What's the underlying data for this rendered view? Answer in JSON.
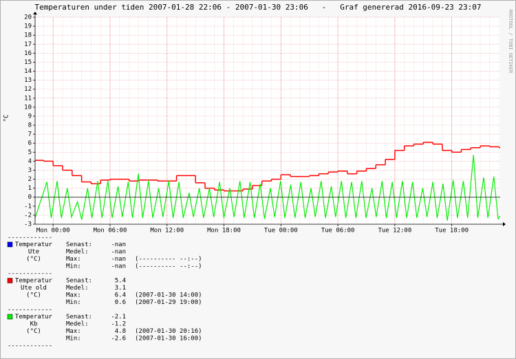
{
  "chart_data": {
    "type": "line",
    "title": "Temperaturen under tiden 2007-01-28 22:06 - 2007-01-30 23:06   -   Graf genererad 2016-09-23 23:07",
    "ylabel": "°C",
    "watermark": "RRDTOOL / TOBI OETIKER",
    "xlim": [
      -1.9,
      47.1
    ],
    "xticks": [
      {
        "value": 0,
        "label": "Mon 00:00"
      },
      {
        "value": 6,
        "label": "Mon 06:00"
      },
      {
        "value": 12,
        "label": "Mon 12:00"
      },
      {
        "value": 18,
        "label": "Mon 18:00"
      },
      {
        "value": 24,
        "label": "Tue 00:00"
      },
      {
        "value": 30,
        "label": "Tue 06:00"
      },
      {
        "value": 36,
        "label": "Tue 12:00"
      },
      {
        "value": 42,
        "label": "Tue 18:00"
      }
    ],
    "ylim": [
      -3,
      20
    ],
    "yticks": [
      -3,
      -2,
      -1,
      0,
      1,
      2,
      3,
      4,
      5,
      6,
      7,
      8,
      9,
      10,
      11,
      12,
      13,
      14,
      15,
      16,
      17,
      18,
      19,
      20
    ],
    "grid": true,
    "minor_grid_step": 1,
    "legend_separator": "------------",
    "series": [
      {
        "name": [
          "Temperatur",
          "Ute",
          "(°C)"
        ],
        "color": "#0000ff",
        "step": false,
        "x": [],
        "values": [],
        "stats": [
          {
            "label": "Senast:",
            "value": "-nan"
          },
          {
            "label": "Medel:",
            "value": "-nan"
          },
          {
            "label": "Max:",
            "value": "-nan",
            "time": "(---------- --:--)"
          },
          {
            "label": "Min:",
            "value": "-nan",
            "time": "(---------- --:--)"
          }
        ]
      },
      {
        "name": [
          "Temperatur",
          "Ute old",
          "(°C)"
        ],
        "color": "#ff0000",
        "step": true,
        "x": [
          -1.9,
          -1,
          0,
          1,
          2,
          3,
          4,
          5,
          6,
          7,
          8,
          9,
          10,
          11,
          12,
          13,
          14,
          15,
          16,
          17,
          18,
          19,
          20,
          21,
          22,
          23,
          24,
          25,
          26,
          27,
          28,
          29,
          30,
          31,
          32,
          33,
          34,
          35,
          36,
          37,
          38,
          39,
          40,
          41,
          42,
          43,
          44,
          45,
          46,
          47
        ],
        "values": [
          4.1,
          4.0,
          3.5,
          3.0,
          2.4,
          1.7,
          1.5,
          1.9,
          2.0,
          2.0,
          1.8,
          1.9,
          1.9,
          1.8,
          1.8,
          2.4,
          2.4,
          1.6,
          1.0,
          0.8,
          0.7,
          0.7,
          0.9,
          1.3,
          1.8,
          2.0,
          2.5,
          2.3,
          2.3,
          2.4,
          2.6,
          2.8,
          2.9,
          2.6,
          2.9,
          3.2,
          3.6,
          4.2,
          5.2,
          5.7,
          5.9,
          6.1,
          5.9,
          5.2,
          5.0,
          5.3,
          5.5,
          5.7,
          5.6,
          5.5
        ],
        "stats": [
          {
            "label": "Senast:",
            "value": 5.4
          },
          {
            "label": "Medel:",
            "value": 3.1
          },
          {
            "label": "Max:",
            "value": 6.4,
            "time": "(2007-01-30 14:00)"
          },
          {
            "label": "Min:",
            "value": 0.6,
            "time": "(2007-01-29 19:00)"
          }
        ]
      },
      {
        "name": [
          "Temperatur",
          "Kb",
          "(°C)"
        ],
        "color": "#00ee00",
        "step": false,
        "x": [
          -1.9,
          -0.65,
          -0.2,
          0.42,
          0.87,
          1.49,
          1.94,
          2.56,
          3.01,
          3.63,
          4.08,
          4.7,
          5.15,
          5.77,
          6.22,
          6.84,
          7.29,
          7.91,
          8.36,
          8.98,
          9.43,
          10.05,
          10.5,
          11.12,
          11.57,
          12.19,
          12.64,
          13.26,
          13.71,
          14.33,
          14.78,
          15.4,
          15.85,
          16.47,
          16.92,
          17.54,
          17.99,
          18.61,
          19.06,
          19.68,
          20.13,
          20.75,
          21.2,
          21.82,
          22.27,
          22.89,
          23.34,
          23.96,
          24.41,
          25.03,
          25.48,
          26.1,
          26.55,
          27.17,
          27.62,
          28.24,
          28.69,
          29.31,
          29.76,
          30.38,
          30.83,
          31.45,
          31.9,
          32.52,
          32.97,
          33.59,
          34.04,
          34.66,
          35.11,
          35.73,
          36.18,
          36.8,
          37.25,
          37.87,
          38.32,
          38.94,
          39.39,
          40.01,
          40.46,
          41.08,
          41.53,
          42.15,
          42.6,
          43.22,
          43.67,
          44.29,
          44.74,
          45.36,
          45.81,
          46.43,
          46.88,
          47.1
        ],
        "values": [
          -2.3,
          1.7,
          -2.3,
          1.8,
          -2.3,
          1.0,
          -2.2,
          -0.5,
          -2.5,
          1.0,
          -2.3,
          1.8,
          -2.3,
          1.8,
          -2.3,
          1.2,
          -2.2,
          1.7,
          -2.3,
          2.6,
          -2.3,
          1.8,
          -2.3,
          1.0,
          -2.2,
          1.8,
          -2.3,
          1.7,
          -2.3,
          0.5,
          -2.2,
          1.0,
          -2.3,
          1.0,
          -2.2,
          1.7,
          -2.3,
          1.0,
          -2.2,
          1.8,
          -2.3,
          1.7,
          -2.3,
          1.5,
          -2.4,
          1.0,
          -2.2,
          1.8,
          -2.3,
          1.4,
          -2.3,
          1.7,
          -2.3,
          1.0,
          -2.2,
          1.8,
          -2.3,
          1.2,
          -2.2,
          1.8,
          -2.3,
          1.7,
          -2.3,
          1.8,
          -2.3,
          1.0,
          -2.2,
          1.8,
          -2.3,
          1.7,
          -2.3,
          1.8,
          -2.3,
          1.7,
          -2.3,
          1.0,
          -2.2,
          1.7,
          -2.3,
          1.5,
          -2.6,
          1.9,
          -2.3,
          1.8,
          -2.3,
          4.7,
          -2.3,
          2.2,
          -2.3,
          2.3,
          -2.4,
          -2.1
        ],
        "stats": [
          {
            "label": "Senast:",
            "value": -2.1
          },
          {
            "label": "Medel:",
            "value": -1.2
          },
          {
            "label": "Max:",
            "value": 4.8,
            "time": "(2007-01-30 20:16)"
          },
          {
            "label": "Min:",
            "value": -2.6,
            "time": "(2007-01-30 16:00)"
          }
        ]
      }
    ]
  }
}
